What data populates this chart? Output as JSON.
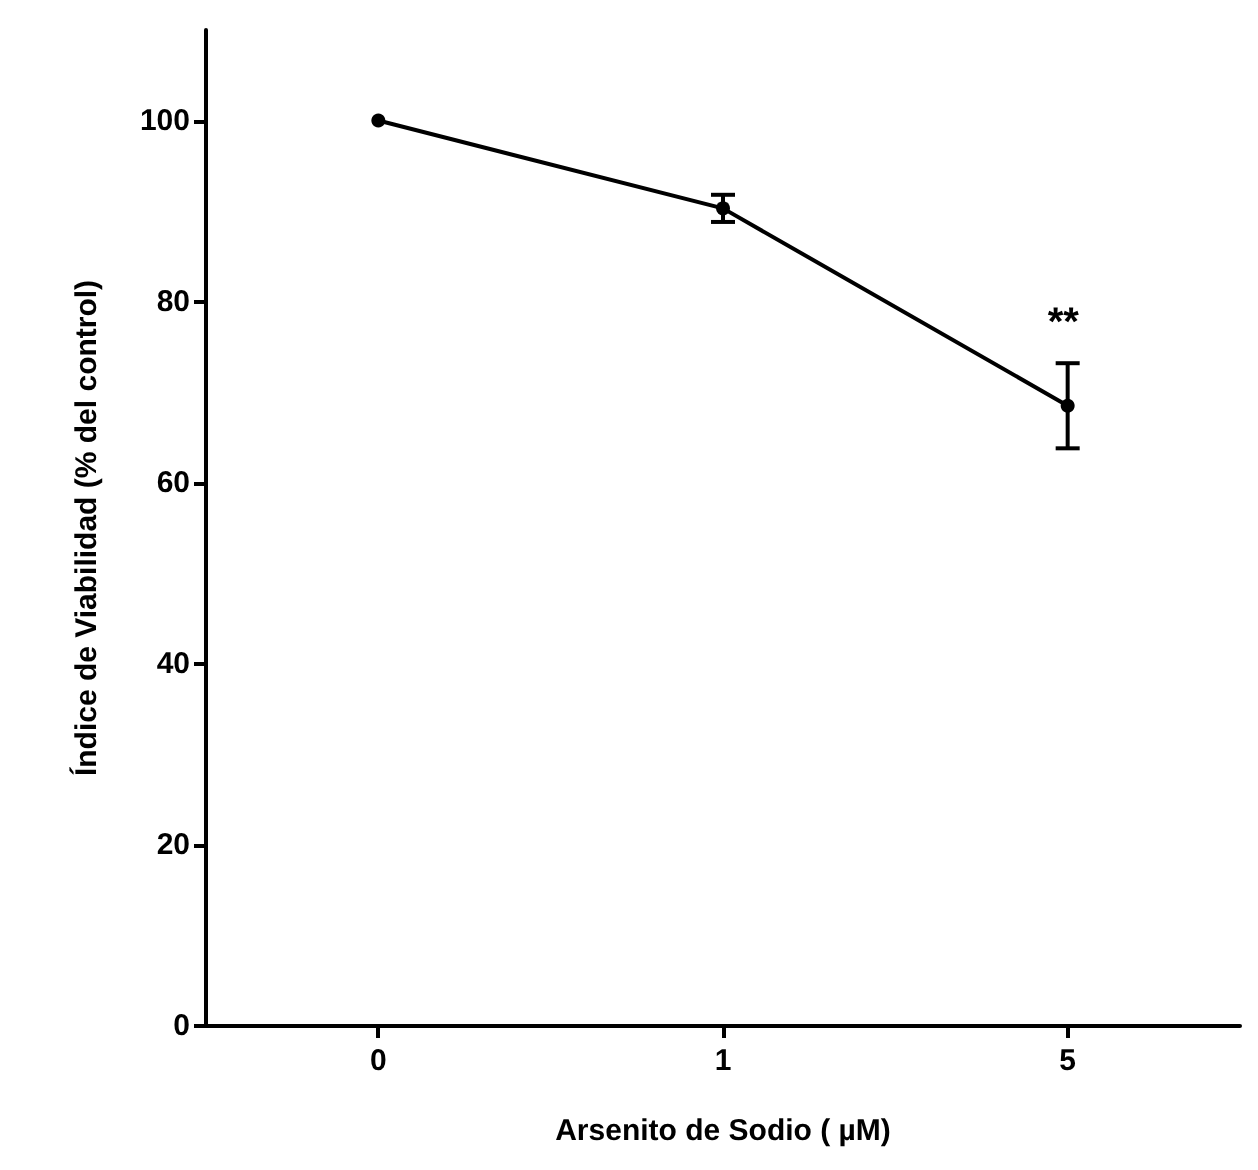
{
  "chart_data": {
    "type": "line",
    "xlabel": "Arsenito de Sodio ( µM)",
    "ylabel": "Índice de Viabilidad (% del control)",
    "categories": [
      "0",
      "1",
      "5"
    ],
    "series": [
      {
        "color": "#000000",
        "values": [
          100,
          90.3,
          68.5
        ],
        "errors": [
          null,
          1.5,
          4.7
        ]
      }
    ],
    "ylim": [
      0,
      110
    ],
    "yticks": [
      0,
      20,
      40,
      60,
      80,
      100
    ],
    "grid": false,
    "marker": "circle",
    "line_style": "solid",
    "annotations": [
      "**"
    ]
  }
}
